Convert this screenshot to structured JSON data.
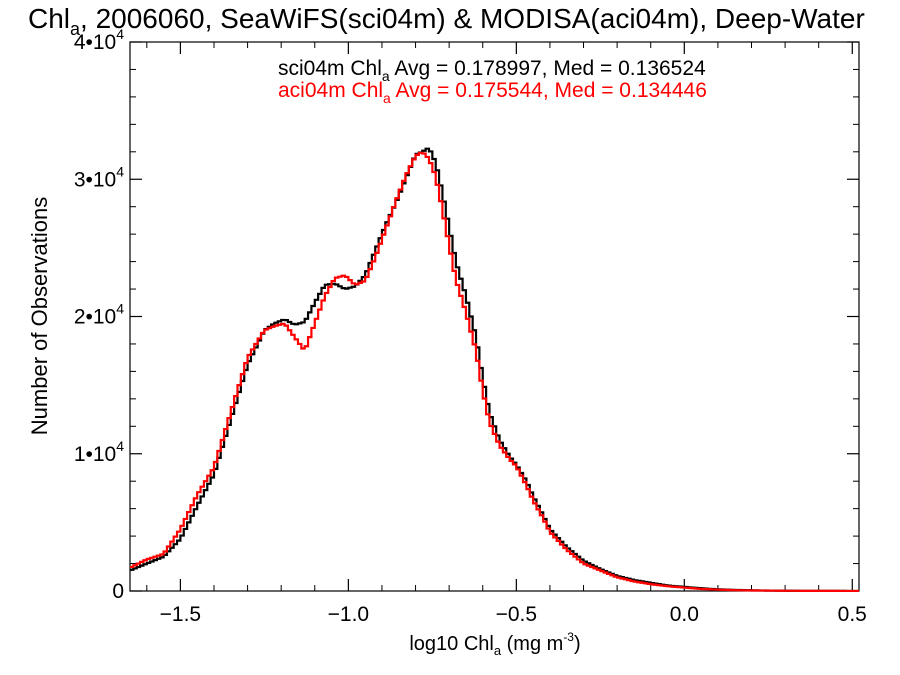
{
  "chart_data": {
    "type": "line",
    "title": {
      "main": "Chl",
      "sub": "a",
      "rest": ", 2006060, SeaWiFS(sci04m) & MODISA(aci04m), Deep-Water"
    },
    "xlabel": {
      "pre": "log10 Chl",
      "sub": "a",
      "mid": " (mg m",
      "sup": "-3",
      "post": ")"
    },
    "ylabel": "Number of Observations",
    "xlim": [
      -1.65,
      0.52
    ],
    "ylim": [
      0,
      40000
    ],
    "xticks": [
      {
        "value": -1.5,
        "label": "−1.5"
      },
      {
        "value": -1.0,
        "label": "−1.0"
      },
      {
        "value": -0.5,
        "label": "−0.5"
      },
      {
        "value": 0.0,
        "label": "0.0"
      },
      {
        "value": 0.5,
        "label": "0.5"
      }
    ],
    "yticks": [
      {
        "value": 0,
        "label": "0",
        "exp": ""
      },
      {
        "value": 10000,
        "label": "1•10",
        "exp": "4"
      },
      {
        "value": 20000,
        "label": "2•10",
        "exp": "4"
      },
      {
        "value": 30000,
        "label": "3•10",
        "exp": "4"
      },
      {
        "value": 40000,
        "label": "4•10",
        "exp": "4"
      }
    ],
    "annotations": [
      {
        "pre": "sci04m Chl",
        "sub": "a",
        "post": " Avg = 0.178997, Med = 0.136524",
        "color": "#000000"
      },
      {
        "pre": "aci04m Chl",
        "sub": "a",
        "post": " Avg = 0.175544, Med = 0.134446",
        "color": "#ff0000"
      }
    ],
    "grid": false,
    "step": true,
    "series": [
      {
        "color": "#000000",
        "x": [
          -1.65,
          -1.6,
          -1.55,
          -1.5,
          -1.45,
          -1.4,
          -1.35,
          -1.3,
          -1.25,
          -1.22,
          -1.19,
          -1.16,
          -1.13,
          -1.1,
          -1.07,
          -1.04,
          -1.01,
          -0.98,
          -0.95,
          -0.92,
          -0.89,
          -0.86,
          -0.83,
          -0.8,
          -0.78,
          -0.76,
          -0.74,
          -0.72,
          -0.7,
          -0.68,
          -0.65,
          -0.62,
          -0.6,
          -0.58,
          -0.55,
          -0.52,
          -0.5,
          -0.47,
          -0.45,
          -0.42,
          -0.4,
          -0.35,
          -0.3,
          -0.25,
          -0.2,
          -0.15,
          -0.1,
          -0.05,
          0.0,
          0.05,
          0.1,
          0.15,
          0.2,
          0.3,
          0.4,
          0.5,
          0.52
        ],
        "y": [
          1500,
          2000,
          2500,
          3800,
          6200,
          8500,
          12500,
          16500,
          19000,
          19500,
          19800,
          19400,
          19600,
          21000,
          22300,
          22400,
          22000,
          22200,
          23000,
          24800,
          26600,
          28200,
          30000,
          31800,
          32000,
          32300,
          31200,
          29000,
          26500,
          24000,
          21500,
          18500,
          15500,
          13000,
          11000,
          9800,
          9200,
          8000,
          6900,
          5500,
          4500,
          3200,
          2200,
          1600,
          1100,
          800,
          600,
          400,
          300,
          200,
          120,
          80,
          50,
          20,
          10,
          5,
          5
        ]
      },
      {
        "color": "#ff0000",
        "x": [
          -1.65,
          -1.6,
          -1.55,
          -1.5,
          -1.45,
          -1.4,
          -1.35,
          -1.3,
          -1.25,
          -1.22,
          -1.19,
          -1.16,
          -1.13,
          -1.1,
          -1.07,
          -1.04,
          -1.01,
          -0.98,
          -0.95,
          -0.92,
          -0.89,
          -0.86,
          -0.83,
          -0.8,
          -0.78,
          -0.76,
          -0.74,
          -0.72,
          -0.7,
          -0.68,
          -0.65,
          -0.62,
          -0.6,
          -0.58,
          -0.55,
          -0.52,
          -0.5,
          -0.47,
          -0.45,
          -0.42,
          -0.4,
          -0.35,
          -0.3,
          -0.25,
          -0.2,
          -0.15,
          -0.1,
          -0.05,
          0.0,
          0.05,
          0.1,
          0.15,
          0.2,
          0.3,
          0.4,
          0.5,
          0.52
        ],
        "y": [
          1700,
          2300,
          2700,
          4500,
          7000,
          9000,
          13000,
          17000,
          19000,
          19300,
          19500,
          18500,
          17500,
          19500,
          21500,
          22800,
          23000,
          22300,
          22600,
          24300,
          26300,
          28300,
          30200,
          31700,
          32000,
          31500,
          30200,
          27800,
          25200,
          22700,
          20300,
          17500,
          14600,
          12300,
          10600,
          9600,
          9100,
          7700,
          6600,
          5300,
          4300,
          3000,
          2000,
          1500,
          1000,
          700,
          500,
          350,
          250,
          150,
          100,
          60,
          40,
          15,
          8,
          5,
          5
        ]
      }
    ]
  }
}
